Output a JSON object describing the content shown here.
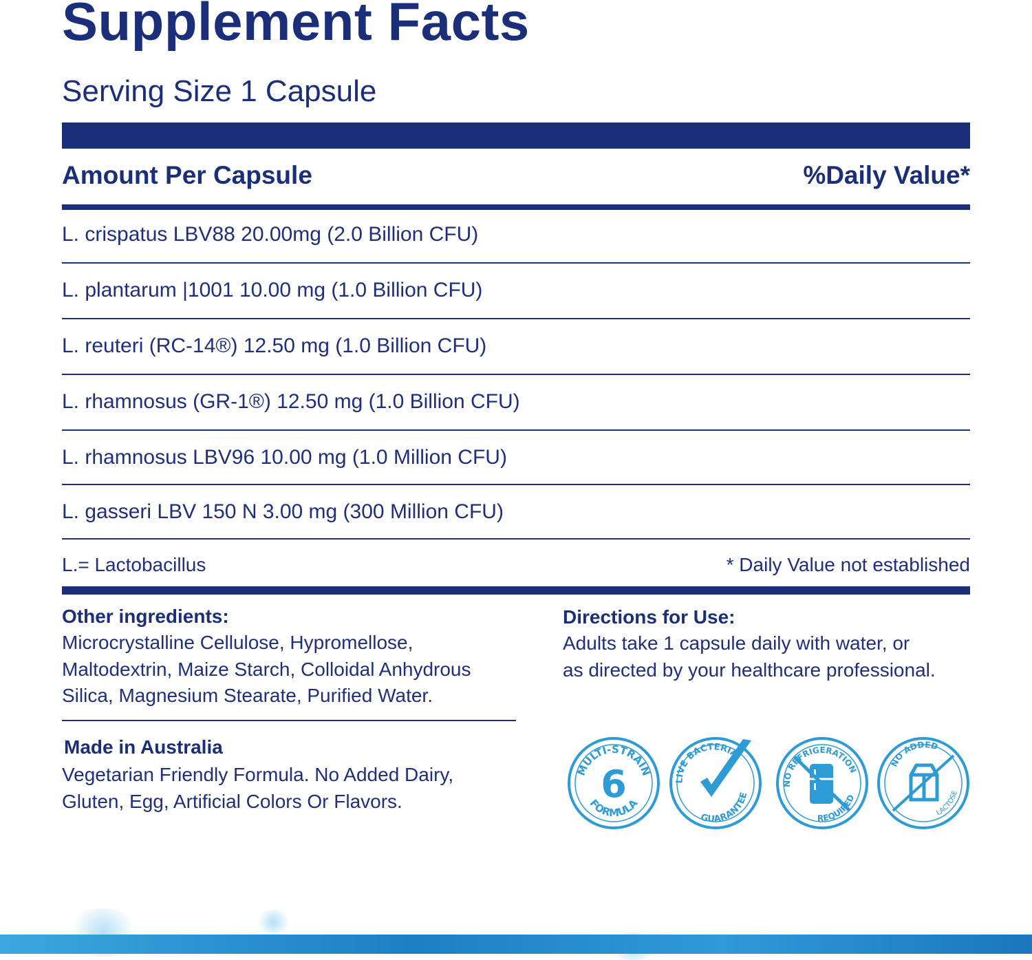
{
  "panel": {
    "title": "Supplement Facts",
    "serving_size": "Serving Size 1 Capsule",
    "amount_header": "Amount Per Capsule",
    "dv_header": "%Daily Value*",
    "rows": [
      "L. crispatus LBV88 20.00mg (2.0 Billion CFU)",
      "L. plantarum |1001 10.00 mg (1.0 Billion CFU)",
      "L. reuteri (RC-14®)  12.50 mg (1.0 Billion CFU)",
      "L. rhamnosus (GR-1®) 12.50 mg (1.0 Billion CFU)",
      "L. rhamnosus LBV96 10.00 mg (1.0 Million CFU)",
      "L. gasseri LBV 150 N 3.00 mg (300 Million CFU)"
    ],
    "footnote_left": "L.= Lactobacillus",
    "footnote_right": "* Daily Value not established"
  },
  "other_ingredients": {
    "heading": "Other ingredients:",
    "lines": [
      "Microcrystalline Cellulose, Hypromellose,",
      "Maltodextrin, Maize Starch, Colloidal Anhydrous",
      "Silica, Magnesium Stearate, Purified Water."
    ]
  },
  "directions": {
    "heading": "Directions for Use:",
    "lines": [
      "Adults take 1 capsule daily with water, or",
      "as directed by your healthcare professional."
    ]
  },
  "origin": {
    "heading": "Made in Australia",
    "lines": [
      "Vegetarian Friendly Formula. No Added Dairy,",
      "Gluten, Egg, Artificial Colors Or Flavors."
    ]
  },
  "badges": {
    "multi_strain": {
      "top": "MULTI-STRAIN",
      "number": "6",
      "bottom": "FORMULA"
    },
    "live_bacteria": {
      "top": "LIVE BACTERIA",
      "bottom": "GUARANTEE"
    },
    "no_refrigeration": {
      "top": "NO REFRIGERATION",
      "bottom": "REQUIRED"
    },
    "no_lactose": {
      "top": "NO ADDED",
      "bottom": "LACTOSE"
    }
  },
  "colors": {
    "navy": "#1b2e7a",
    "badge_blue": "#2c9bd6",
    "band_blue": "#1d7fc4"
  }
}
